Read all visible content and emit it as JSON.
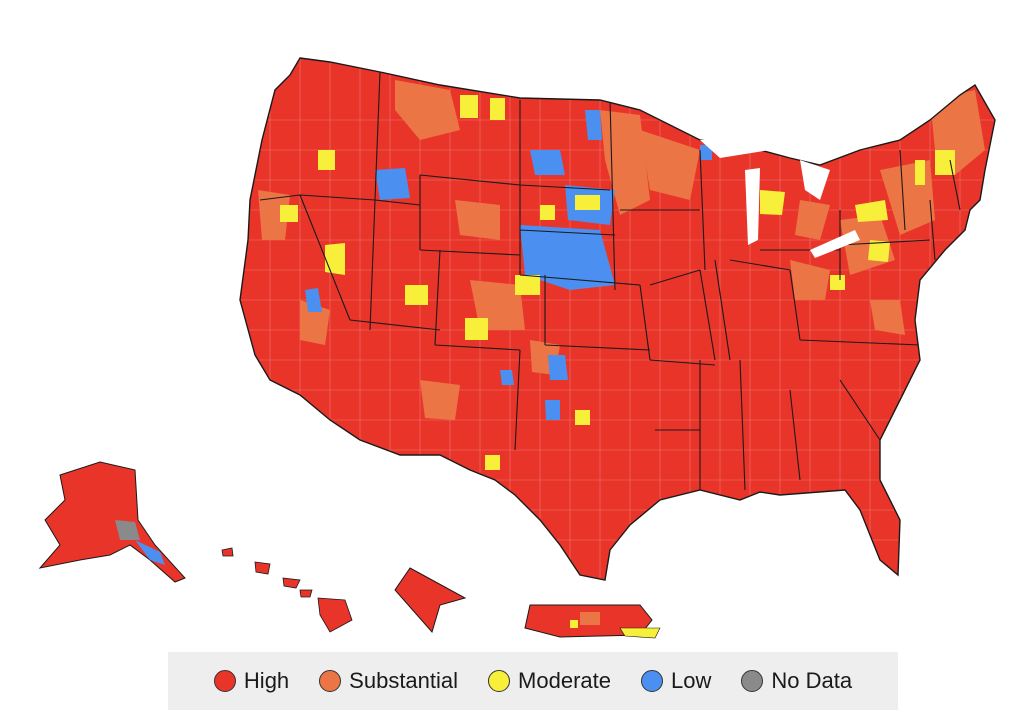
{
  "colors": {
    "high": "#e9342a",
    "substantial": "#ec7545",
    "moderate": "#f7ef3a",
    "low": "#4b8ff0",
    "no_data": "#8a8a8a",
    "border": "#1a1a1a",
    "county_line": "#f3b0a8"
  },
  "legend": {
    "items": [
      {
        "label": "High",
        "color": "#e9342a"
      },
      {
        "label": "Substantial",
        "color": "#ec7545"
      },
      {
        "label": "Moderate",
        "color": "#f7ef3a"
      },
      {
        "label": "Low",
        "color": "#4b8ff0"
      },
      {
        "label": "No Data",
        "color": "#8a8a8a"
      }
    ]
  },
  "map": {
    "predominant_level": "High",
    "regions": [
      "contiguous-us",
      "alaska",
      "hawaii",
      "guam",
      "puerto-rico"
    ]
  }
}
